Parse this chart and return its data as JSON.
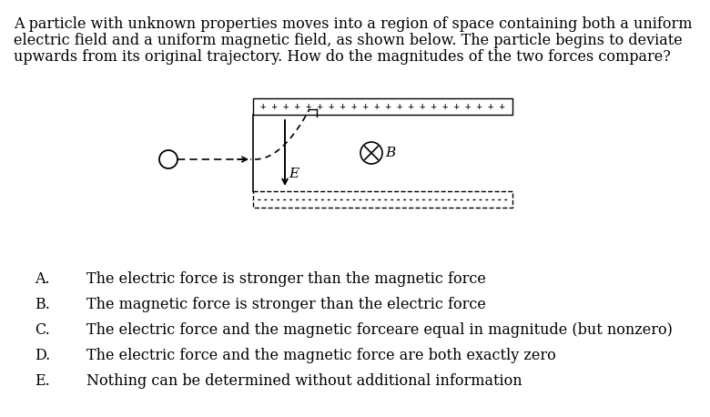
{
  "title_lines": [
    "A particle with unknown properties moves into a region of space containing both a uniform",
    "electric field and a uniform magnetic field, as shown below. The particle begins to deviate",
    "upwards from its original trajectory. How do the magnitudes of the two forces compare?"
  ],
  "title_fontsize": 11.5,
  "answer_labels": [
    "A.",
    "B.",
    "C.",
    "D.",
    "E."
  ],
  "answer_texts": [
    "The electric force is stronger than the magnetic force",
    "The magnetic force is stronger than the electric force",
    "The electric force and the magnetic forceare equal in magnitude (but nonzero)",
    "The electric force and the magnetic force are both exactly zero",
    "Nothing can be determined without additional information"
  ],
  "answer_fontsize": 11.5,
  "bg_color": "#ffffff",
  "text_color": "#000000"
}
